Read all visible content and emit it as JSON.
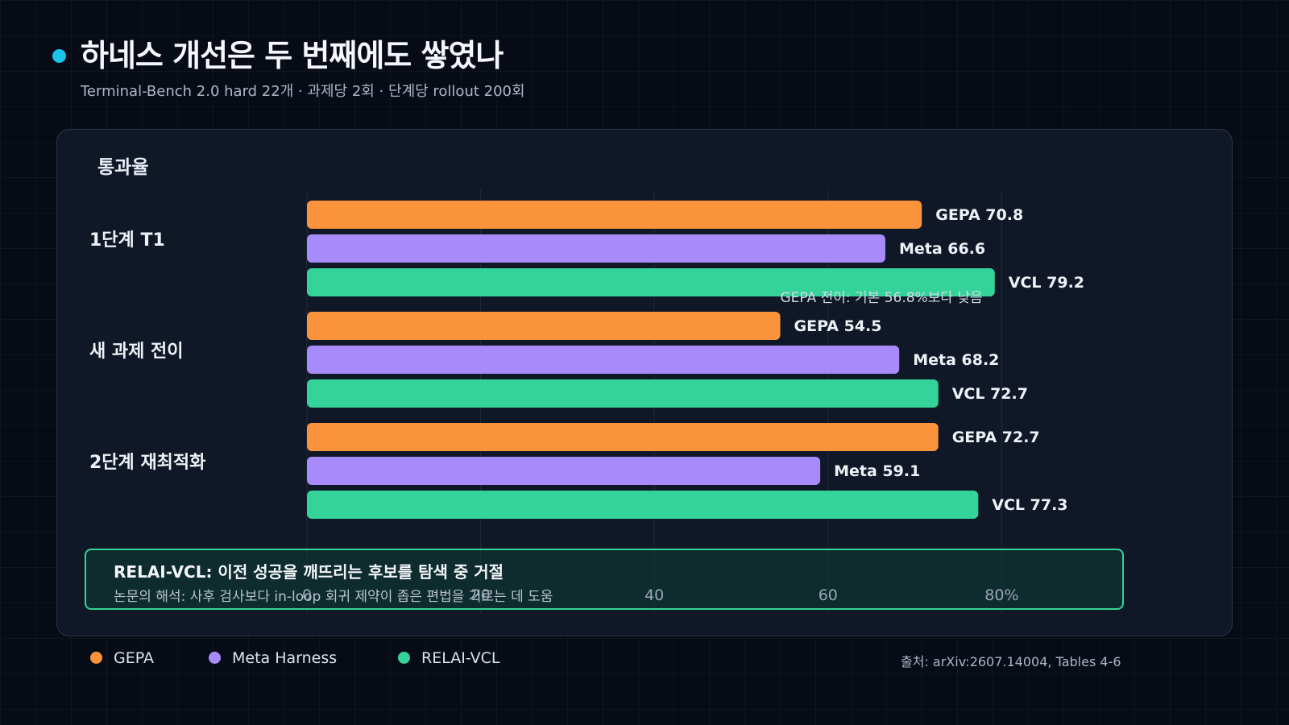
{
  "header": {
    "title": "하네스 개선은 두 번째에도 쌓였나",
    "subtitle": "Terminal-Bench 2.0 hard 22개 · 과제당 2회 · 단계당 rollout 200회"
  },
  "panel": {
    "label": "통과율"
  },
  "chart_data": {
    "type": "bar",
    "orientation": "horizontal",
    "title": "",
    "ylabel": "",
    "xlabel": "통과율",
    "categories": [
      "1단계 T1",
      "새 과제 전이",
      "2단계 재최적화"
    ],
    "series": [
      {
        "name": "GEPA",
        "color": "#fb923c",
        "values": [
          70.8,
          54.5,
          72.7
        ],
        "value_labels": [
          "GEPA 70.8",
          "GEPA 54.5",
          "GEPA 72.7"
        ]
      },
      {
        "name": "Meta Harness",
        "color": "#a78bfa",
        "values": [
          66.6,
          68.2,
          59.1
        ],
        "value_labels": [
          "Meta 66.6",
          "Meta 68.2",
          "Meta 59.1"
        ]
      },
      {
        "name": "RELAI-VCL",
        "color": "#34d399",
        "values": [
          79.2,
          72.7,
          77.3
        ],
        "value_labels": [
          "VCL 79.2",
          "VCL 72.7",
          "VCL 77.3"
        ]
      }
    ],
    "xlim": [
      0,
      80
    ],
    "ticks": [
      {
        "value": 0,
        "label": "0"
      },
      {
        "value": 20,
        "label": "20"
      },
      {
        "value": 40,
        "label": "40"
      },
      {
        "value": 60,
        "label": "60"
      },
      {
        "value": 80,
        "label": "80%"
      }
    ],
    "annotation": "GEPA 전이: 기본 56.8%보다 낮음",
    "grid": true,
    "legend_position": "bottom-left"
  },
  "note": {
    "title": "RELAI-VCL: 이전 성공을 깨뜨리는 후보를 탐색 중 거절",
    "text": "논문의 해석: 사후 검사보다 in-loop 회귀 제약이 좁은 편법을 거르는 데 도움"
  },
  "legend": [
    {
      "name": "GEPA",
      "color": "#fb923c"
    },
    {
      "name": "Meta Harness",
      "color": "#a78bfa"
    },
    {
      "name": "RELAI-VCL",
      "color": "#34d399"
    }
  ],
  "footer": {
    "source": "출처: arXiv:2607.14004, Tables 4-6"
  }
}
